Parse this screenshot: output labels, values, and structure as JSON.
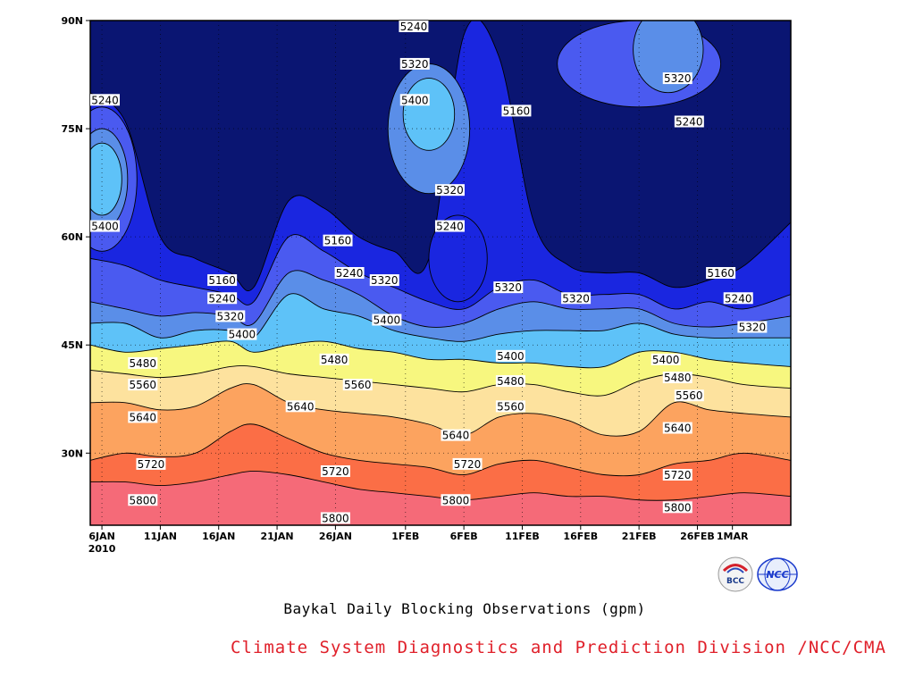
{
  "title": "Baykal Daily Blocking Observations (gpm)",
  "credit": "Climate System Diagnostics and Prediction Division /NCC/CMA",
  "logos": [
    {
      "name": "bcc-logo",
      "text": "BCC"
    },
    {
      "name": "ncc-logo",
      "text": "NCC"
    }
  ],
  "chart_data": {
    "type": "contour",
    "xlabel": "",
    "ylabel": "",
    "x_ticks": [
      {
        "day": 5,
        "label": "6JAN",
        "sub": "2010"
      },
      {
        "day": 10,
        "label": "11JAN"
      },
      {
        "day": 15,
        "label": "16JAN"
      },
      {
        "day": 20,
        "label": "21JAN"
      },
      {
        "day": 25,
        "label": "26JAN"
      },
      {
        "day": 31,
        "label": "1FEB"
      },
      {
        "day": 36,
        "label": "6FEB"
      },
      {
        "day": 41,
        "label": "11FEB"
      },
      {
        "day": 46,
        "label": "16FEB"
      },
      {
        "day": 51,
        "label": "21FEB"
      },
      {
        "day": 56,
        "label": "26FEB"
      },
      {
        "day": 59,
        "label": "1MAR"
      }
    ],
    "x_range_days_since_jan1": [
      4,
      64
    ],
    "y_ticks": [
      {
        "lat": 30,
        "label": "30N"
      },
      {
        "lat": 45,
        "label": "45N"
      },
      {
        "lat": 60,
        "label": "60N"
      },
      {
        "lat": 75,
        "label": "75N"
      },
      {
        "lat": 90,
        "label": "90N"
      }
    ],
    "y_range_lat": [
      20,
      90
    ],
    "grid": true,
    "contour_levels": [
      5160,
      5240,
      5320,
      5400,
      5480,
      5560,
      5640,
      5720,
      5800
    ],
    "fill_colors": [
      "#0a1572",
      "#1a26e0",
      "#4a5af0",
      "#5a8ee8",
      "#5ec2f8",
      "#f7f77f",
      "#fde29e",
      "#fca35f",
      "#fb6e46",
      "#f56a78"
    ],
    "bands": [
      {
        "level": 5800,
        "color": "#f56a78",
        "lat": [
          26,
          26,
          25.5,
          26,
          27,
          27.5,
          27,
          26,
          25,
          24.5,
          24,
          23.5,
          24,
          24.5,
          24,
          24,
          23.5,
          23.5,
          24,
          24.5,
          24
        ]
      },
      {
        "level": 5720,
        "color": "#fb6e46",
        "lat": [
          29,
          30,
          29.5,
          30,
          33,
          34,
          32,
          30,
          29,
          28.5,
          28,
          27,
          28.5,
          29,
          28,
          27,
          27,
          28.5,
          29,
          30,
          29
        ]
      },
      {
        "level": 5640,
        "color": "#fca35f",
        "lat": [
          37,
          37,
          36,
          36.5,
          39,
          39.5,
          37,
          36,
          35.5,
          35,
          34,
          32.5,
          35,
          35.5,
          34.5,
          32.5,
          33,
          37,
          36,
          35.5,
          35
        ]
      },
      {
        "level": 5560,
        "color": "#fde29e",
        "lat": [
          41.5,
          41,
          40.5,
          41,
          42,
          42,
          41,
          40.5,
          40,
          39.5,
          39,
          38.5,
          39.5,
          39.5,
          38.5,
          38,
          40,
          41,
          40.5,
          39.5,
          39
        ]
      },
      {
        "level": 5480,
        "color": "#f7f77f",
        "lat": [
          45,
          44,
          44.5,
          45,
          45.5,
          44,
          45,
          45.5,
          44.5,
          44,
          43,
          43,
          42.5,
          42.5,
          42,
          42,
          44,
          44,
          43,
          42.5,
          42
        ]
      },
      {
        "level": 5400,
        "color": "#5ec2f8",
        "lat": [
          48,
          48,
          46,
          47,
          47,
          46,
          52,
          50,
          49,
          47,
          46,
          45.5,
          46.5,
          47,
          47,
          47,
          48,
          46.5,
          46,
          46,
          46
        ]
      },
      {
        "level": 5320,
        "color": "#5a8ee8",
        "lat": [
          51,
          50,
          49,
          49.5,
          49,
          48,
          55,
          54,
          52,
          49,
          47.5,
          48,
          50,
          51,
          50,
          50,
          50,
          48,
          47.5,
          48,
          49
        ]
      },
      {
        "level": 5240,
        "color": "#4a5af0",
        "lat": [
          57,
          56,
          54,
          53,
          52,
          51,
          60,
          58,
          55,
          53,
          51,
          50,
          53,
          54,
          52,
          52,
          52,
          50,
          51,
          50,
          52
        ]
      },
      {
        "level": 5160,
        "color": "#1a26e0",
        "lat": [
          80,
          76,
          60,
          57,
          55,
          53,
          65,
          64,
          60,
          58,
          57,
          88,
          85,
          62,
          56,
          55,
          55,
          53,
          54,
          56,
          62
        ]
      }
    ],
    "band_x_days": [
      4,
      7,
      10,
      13,
      16,
      18,
      21,
      24,
      27,
      30,
      33,
      36,
      39,
      42,
      45,
      48,
      51,
      54,
      57,
      60,
      64
    ],
    "blobs": [
      {
        "color": "#5a8ee8",
        "cx": 33,
        "cy": 75,
        "rx": 3.5,
        "ry": 9
      },
      {
        "color": "#5ec2f8",
        "cx": 33,
        "cy": 77,
        "rx": 2.2,
        "ry": 5
      },
      {
        "color": "#1a26e0",
        "cx": 35.5,
        "cy": 57,
        "rx": 2.5,
        "ry": 6
      },
      {
        "color": "#4a5af0",
        "cx": 5,
        "cy": 68,
        "rx": 3,
        "ry": 10
      },
      {
        "color": "#5a8ee8",
        "cx": 5,
        "cy": 68,
        "rx": 2.2,
        "ry": 7
      },
      {
        "color": "#5ec2f8",
        "cx": 5,
        "cy": 68,
        "rx": 1.7,
        "ry": 5
      },
      {
        "color": "#4a5af0",
        "cx": 51,
        "cy": 84,
        "rx": 7,
        "ry": 6
      },
      {
        "color": "#5a8ee8",
        "cx": 53.5,
        "cy": 86,
        "rx": 3,
        "ry": 6
      }
    ],
    "contour_labels": [
      {
        "day": 4.7,
        "lat": 79,
        "text": "5240"
      },
      {
        "day": 4.9,
        "lat": 61.5,
        "text": "5400"
      },
      {
        "day": 15.3,
        "lat": 54,
        "text": "5160"
      },
      {
        "day": 15.3,
        "lat": 51.5,
        "text": "5240"
      },
      {
        "day": 16,
        "lat": 49,
        "text": "5320"
      },
      {
        "day": 17,
        "lat": 46.5,
        "text": "5400"
      },
      {
        "day": 8.5,
        "lat": 42.5,
        "text": "5480"
      },
      {
        "day": 8.5,
        "lat": 39.5,
        "text": "5560"
      },
      {
        "day": 8.5,
        "lat": 35,
        "text": "5640"
      },
      {
        "day": 9.2,
        "lat": 28.5,
        "text": "5720"
      },
      {
        "day": 8.5,
        "lat": 23.5,
        "text": "5800"
      },
      {
        "day": 25.2,
        "lat": 59.5,
        "text": "5160"
      },
      {
        "day": 26.2,
        "lat": 55,
        "text": "5240"
      },
      {
        "day": 29.2,
        "lat": 54,
        "text": "5320"
      },
      {
        "day": 29.4,
        "lat": 48.5,
        "text": "5400"
      },
      {
        "day": 24.9,
        "lat": 43,
        "text": "5480"
      },
      {
        "day": 26.9,
        "lat": 39.5,
        "text": "5560"
      },
      {
        "day": 22,
        "lat": 36.5,
        "text": "5640"
      },
      {
        "day": 25,
        "lat": 27.5,
        "text": "5720"
      },
      {
        "day": 25,
        "lat": 21,
        "text": "5800"
      },
      {
        "day": 31.7,
        "lat": 89.5,
        "text": "5240"
      },
      {
        "day": 31.8,
        "lat": 84,
        "text": "5320"
      },
      {
        "day": 31.8,
        "lat": 79,
        "text": "5400"
      },
      {
        "day": 34.8,
        "lat": 66.5,
        "text": "5320"
      },
      {
        "day": 34.8,
        "lat": 61.5,
        "text": "5240"
      },
      {
        "day": 40.5,
        "lat": 77.5,
        "text": "5160"
      },
      {
        "day": 39.8,
        "lat": 53,
        "text": "5320"
      },
      {
        "day": 40,
        "lat": 43.5,
        "text": "5400"
      },
      {
        "day": 40,
        "lat": 40,
        "text": "5480"
      },
      {
        "day": 40,
        "lat": 36.5,
        "text": "5560"
      },
      {
        "day": 35.3,
        "lat": 32.5,
        "text": "5640"
      },
      {
        "day": 36.3,
        "lat": 28.5,
        "text": "5720"
      },
      {
        "day": 35.3,
        "lat": 23.5,
        "text": "5800"
      },
      {
        "day": 45.6,
        "lat": 51.5,
        "text": "5320"
      },
      {
        "day": 54.3,
        "lat": 82,
        "text": "5320"
      },
      {
        "day": 55.3,
        "lat": 76,
        "text": "5240"
      },
      {
        "day": 58,
        "lat": 55,
        "text": "5160"
      },
      {
        "day": 59.5,
        "lat": 51.5,
        "text": "5240"
      },
      {
        "day": 60.7,
        "lat": 47.5,
        "text": "5320"
      },
      {
        "day": 53.3,
        "lat": 43,
        "text": "5400"
      },
      {
        "day": 54.3,
        "lat": 40.5,
        "text": "5480"
      },
      {
        "day": 55.3,
        "lat": 38,
        "text": "5560"
      },
      {
        "day": 54.3,
        "lat": 33.5,
        "text": "5640"
      },
      {
        "day": 54.3,
        "lat": 27,
        "text": "5720"
      },
      {
        "day": 54.3,
        "lat": 22.5,
        "text": "5800"
      }
    ]
  }
}
